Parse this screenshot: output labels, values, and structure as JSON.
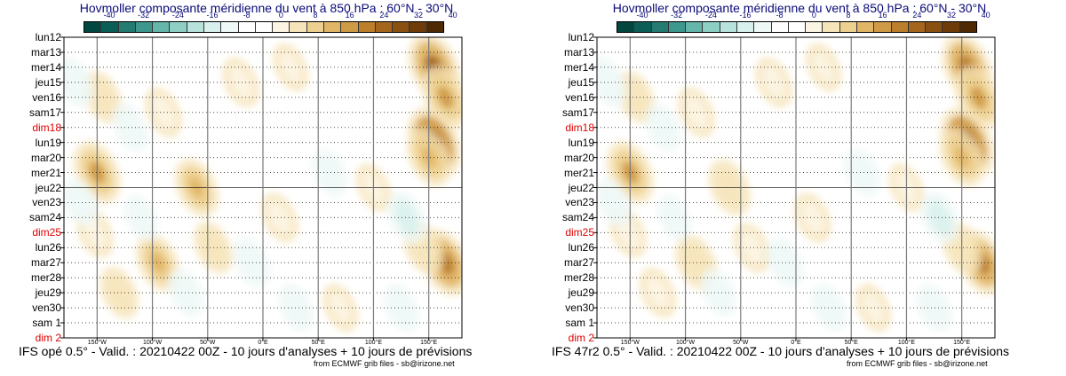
{
  "chart_data": [
    {
      "type": "heatmap",
      "title": "Hovmoller composante méridienne du vent à 850 hPa : 60°N - 30°N",
      "colorbar": {
        "ticks": [
          "-40",
          "-32",
          "-24",
          "-16",
          "-8",
          "0",
          "8",
          "16",
          "24",
          "32",
          "40"
        ],
        "colors": [
          "#01463f",
          "#0b5e56",
          "#237b72",
          "#3d978c",
          "#64b5aa",
          "#8ecfc4",
          "#b7e3dc",
          "#d9f1ec",
          "#eef8f6",
          "#ffffff",
          "#ffffff",
          "#fcf5e3",
          "#f6e5bb",
          "#edd08f",
          "#e0b566",
          "#cf9a45",
          "#bb7e2b",
          "#a3661c",
          "#8a5011",
          "#6e3c09",
          "#4f2904"
        ]
      },
      "dates": [
        {
          "label": "lun12",
          "sunday": false
        },
        {
          "label": "mar13",
          "sunday": false
        },
        {
          "label": "mer14",
          "sunday": false
        },
        {
          "label": "jeu15",
          "sunday": false
        },
        {
          "label": "ven16",
          "sunday": false
        },
        {
          "label": "sam17",
          "sunday": false
        },
        {
          "label": "dim18",
          "sunday": true
        },
        {
          "label": "lun19",
          "sunday": false
        },
        {
          "label": "mar20",
          "sunday": false
        },
        {
          "label": "mer21",
          "sunday": false
        },
        {
          "label": "jeu22",
          "sunday": false
        },
        {
          "label": "ven23",
          "sunday": false
        },
        {
          "label": "sam24",
          "sunday": false
        },
        {
          "label": "dim25",
          "sunday": true
        },
        {
          "label": "lun26",
          "sunday": false
        },
        {
          "label": "mar27",
          "sunday": false
        },
        {
          "label": "mer28",
          "sunday": false
        },
        {
          "label": "jeu29",
          "sunday": false
        },
        {
          "label": "ven30",
          "sunday": false
        },
        {
          "label": "sam 1",
          "sunday": false
        },
        {
          "label": "dim 2",
          "sunday": true
        }
      ],
      "analysis_end_index": 10,
      "longitudes": [
        {
          "label": "150°W",
          "value": -150
        },
        {
          "label": "100°W",
          "value": -100
        },
        {
          "label": "50°W",
          "value": -50
        },
        {
          "label": "0°E",
          "value": 0
        },
        {
          "label": "50°E",
          "value": 50
        },
        {
          "label": "100°E",
          "value": 100
        },
        {
          "label": "150°E",
          "value": 150
        }
      ],
      "xlim": [
        -180,
        180
      ],
      "caption": "IFS opé 0.5° - Valid. : 20210422 00Z - 10 jours d'analyses + 10 jours de prévisions",
      "credit": "from ECMWF grib files - sb@irizone.net",
      "blobs": [
        {
          "lon": -150,
          "date": 9,
          "v": 22
        },
        {
          "lon": -145,
          "date": 4,
          "v": 12
        },
        {
          "lon": -152,
          "date": 13,
          "v": 10
        },
        {
          "lon": -130,
          "date": 17,
          "v": 12
        },
        {
          "lon": -95,
          "date": 15,
          "v": 18
        },
        {
          "lon": -90,
          "date": 5,
          "v": 10
        },
        {
          "lon": -60,
          "date": 10,
          "v": 18
        },
        {
          "lon": -45,
          "date": 14,
          "v": 12
        },
        {
          "lon": -20,
          "date": 3,
          "v": 10
        },
        {
          "lon": 15,
          "date": 12,
          "v": 10
        },
        {
          "lon": 25,
          "date": 2,
          "v": 8
        },
        {
          "lon": 70,
          "date": 18,
          "v": 8
        },
        {
          "lon": 100,
          "date": 10,
          "v": 8
        },
        {
          "lon": 155,
          "date": 2,
          "v": 28
        },
        {
          "lon": 165,
          "date": 4,
          "v": 22
        },
        {
          "lon": 155,
          "date": 7,
          "v": 30
        },
        {
          "lon": 150,
          "date": 8,
          "v": 18
        },
        {
          "lon": 165,
          "date": 15,
          "v": 26
        },
        {
          "lon": 145,
          "date": 14,
          "v": 14
        },
        {
          "lon": -170,
          "date": 3,
          "v": -10
        },
        {
          "lon": -165,
          "date": 11,
          "v": -8
        },
        {
          "lon": -120,
          "date": 6,
          "v": -8
        },
        {
          "lon": -70,
          "date": 17,
          "v": -8
        },
        {
          "lon": -10,
          "date": 15,
          "v": -10
        },
        {
          "lon": 60,
          "date": 9,
          "v": -8
        },
        {
          "lon": 130,
          "date": 12,
          "v": -12
        },
        {
          "lon": 125,
          "date": 18,
          "v": -8
        },
        {
          "lon": -110,
          "date": 12,
          "v": -6
        },
        {
          "lon": 30,
          "date": 18,
          "v": -8
        }
      ]
    },
    {
      "type": "heatmap",
      "title": "Hovmoller composante méridienne du vent à 850 hPa : 60°N - 30°N",
      "colorbar": {
        "ticks": [
          "-40",
          "-32",
          "-24",
          "-16",
          "-8",
          "0",
          "8",
          "16",
          "24",
          "32",
          "40"
        ],
        "colors": [
          "#01463f",
          "#0b5e56",
          "#237b72",
          "#3d978c",
          "#64b5aa",
          "#8ecfc4",
          "#b7e3dc",
          "#d9f1ec",
          "#eef8f6",
          "#ffffff",
          "#ffffff",
          "#fcf5e3",
          "#f6e5bb",
          "#edd08f",
          "#e0b566",
          "#cf9a45",
          "#bb7e2b",
          "#a3661c",
          "#8a5011",
          "#6e3c09",
          "#4f2904"
        ]
      },
      "dates": [
        {
          "label": "lun12",
          "sunday": false
        },
        {
          "label": "mar13",
          "sunday": false
        },
        {
          "label": "mer14",
          "sunday": false
        },
        {
          "label": "jeu15",
          "sunday": false
        },
        {
          "label": "ven16",
          "sunday": false
        },
        {
          "label": "sam17",
          "sunday": false
        },
        {
          "label": "dim18",
          "sunday": true
        },
        {
          "label": "lun19",
          "sunday": false
        },
        {
          "label": "mar20",
          "sunday": false
        },
        {
          "label": "mer21",
          "sunday": false
        },
        {
          "label": "jeu22",
          "sunday": false
        },
        {
          "label": "ven23",
          "sunday": false
        },
        {
          "label": "sam24",
          "sunday": false
        },
        {
          "label": "dim25",
          "sunday": true
        },
        {
          "label": "lun26",
          "sunday": false
        },
        {
          "label": "mar27",
          "sunday": false
        },
        {
          "label": "mer28",
          "sunday": false
        },
        {
          "label": "jeu29",
          "sunday": false
        },
        {
          "label": "ven30",
          "sunday": false
        },
        {
          "label": "sam 1",
          "sunday": false
        },
        {
          "label": "dim 2",
          "sunday": true
        }
      ],
      "analysis_end_index": 10,
      "longitudes": [
        {
          "label": "150°W",
          "value": -150
        },
        {
          "label": "100°W",
          "value": -100
        },
        {
          "label": "50°W",
          "value": -50
        },
        {
          "label": "0°E",
          "value": 0
        },
        {
          "label": "50°E",
          "value": 50
        },
        {
          "label": "100°E",
          "value": 100
        },
        {
          "label": "150°E",
          "value": 150
        }
      ],
      "xlim": [
        -180,
        180
      ],
      "caption": "IFS 47r2 0.5° - Valid. : 20210422 00Z - 10 jours d'analyses + 10 jours de prévisions",
      "credit": "from ECMWF grib files - sb@irizone.net",
      "blobs": [
        {
          "lon": -150,
          "date": 9,
          "v": 22
        },
        {
          "lon": -145,
          "date": 4,
          "v": 12
        },
        {
          "lon": -152,
          "date": 13,
          "v": 10
        },
        {
          "lon": -125,
          "date": 17,
          "v": 10
        },
        {
          "lon": -90,
          "date": 15,
          "v": 16
        },
        {
          "lon": -90,
          "date": 5,
          "v": 10
        },
        {
          "lon": -60,
          "date": 10,
          "v": 16
        },
        {
          "lon": -40,
          "date": 14,
          "v": 10
        },
        {
          "lon": -20,
          "date": 3,
          "v": 10
        },
        {
          "lon": 15,
          "date": 12,
          "v": 10
        },
        {
          "lon": 25,
          "date": 2,
          "v": 8
        },
        {
          "lon": 70,
          "date": 18,
          "v": 8
        },
        {
          "lon": 100,
          "date": 10,
          "v": 8
        },
        {
          "lon": 155,
          "date": 2,
          "v": 26
        },
        {
          "lon": 165,
          "date": 4,
          "v": 22
        },
        {
          "lon": 155,
          "date": 7,
          "v": 30
        },
        {
          "lon": 150,
          "date": 8,
          "v": 18
        },
        {
          "lon": 168,
          "date": 15,
          "v": 24
        },
        {
          "lon": 150,
          "date": 14,
          "v": 14
        },
        {
          "lon": -170,
          "date": 3,
          "v": -10
        },
        {
          "lon": -165,
          "date": 11,
          "v": -8
        },
        {
          "lon": -120,
          "date": 6,
          "v": -8
        },
        {
          "lon": -70,
          "date": 17,
          "v": -8
        },
        {
          "lon": -10,
          "date": 15,
          "v": -10
        },
        {
          "lon": 60,
          "date": 9,
          "v": -8
        },
        {
          "lon": 130,
          "date": 12,
          "v": -12
        },
        {
          "lon": 125,
          "date": 18,
          "v": -8
        },
        {
          "lon": -110,
          "date": 12,
          "v": -6
        },
        {
          "lon": 30,
          "date": 18,
          "v": -8
        }
      ]
    }
  ]
}
